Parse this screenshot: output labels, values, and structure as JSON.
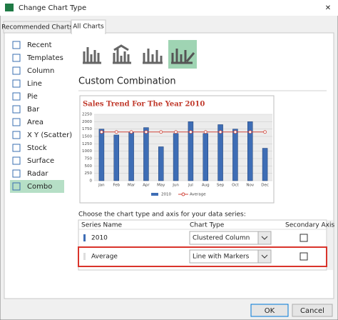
{
  "dialog": {
    "title": "Change Chart Type",
    "close": "✕",
    "tabs": [
      "Recommended Charts",
      "All Charts"
    ],
    "sidebar": [
      "Recent",
      "Templates",
      "Column",
      "Line",
      "Pie",
      "Bar",
      "Area",
      "X Y (Scatter)",
      "Stock",
      "Surface",
      "Radar",
      "Combo"
    ],
    "section_title": "Custom Combination",
    "preview_chart": {
      "type": "combo",
      "title": "Sales Trend For The Year 2010",
      "categories": [
        "Jan",
        "Feb",
        "Mar",
        "Apr",
        "May",
        "Jun",
        "Jul",
        "Aug",
        "Sep",
        "Oct",
        "Nov",
        "Dec"
      ],
      "series": [
        {
          "name": "2010",
          "type": "bar",
          "color": "#3e6db5",
          "values": [
            1750,
            1550,
            1650,
            1800,
            1150,
            1600,
            2000,
            1600,
            1900,
            1750,
            2000,
            1100
          ]
        },
        {
          "name": "Average",
          "type": "line",
          "color": "#d0463b",
          "values": [
            1650,
            1650,
            1650,
            1650,
            1650,
            1650,
            1650,
            1650,
            1650,
            1650,
            1650,
            1650
          ]
        }
      ],
      "ylim": [
        0,
        2250
      ],
      "yticks": [
        0,
        250,
        500,
        750,
        1000,
        1250,
        1500,
        1750,
        2000,
        2250
      ],
      "grid": true
    },
    "series_table": {
      "heading": "Choose the chart type and axis for your data series:",
      "columns": [
        "Series Name",
        "Chart Type",
        "Secondary Axis"
      ],
      "rows": [
        {
          "name": "2010",
          "chart_type": "Clustered Column"
        },
        {
          "name": "Average",
          "chart_type": "Line with Markers"
        }
      ]
    },
    "buttons": [
      "OK",
      "Cancel"
    ]
  }
}
